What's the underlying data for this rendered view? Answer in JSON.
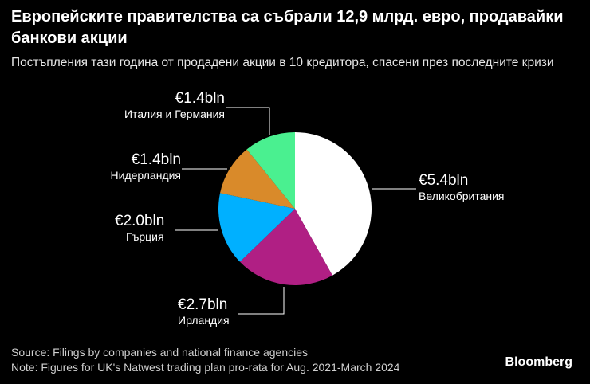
{
  "title": "Европейските правителства са събрали 12,9 млрд. евро, продавайки банкови акции",
  "subtitle": "Постъпления тази година от продадени акции в 10 кредитора, спасени през последните кризи",
  "chart_data": {
    "type": "pie",
    "title": "Европейските правителства са събрали 12,9 млрд. евро, продавайки банкови акции",
    "subtitle": "Постъпления тази година от продадени акции в 10 кредитора, спасени през последните кризи",
    "unit": "€ billion",
    "slices": [
      {
        "name": "Великобритания",
        "value": 5.4,
        "label": "€5.4bln",
        "color": "#ffffff"
      },
      {
        "name": "Ирландия",
        "value": 2.7,
        "label": "€2.7bln",
        "color": "#b01f84"
      },
      {
        "name": "Гърция",
        "value": 2.0,
        "label": "€2.0bln",
        "color": "#00b0ff"
      },
      {
        "name": "Нидерландия",
        "value": 1.4,
        "label": "€1.4bln",
        "color": "#d98a2a"
      },
      {
        "name": "Италия и Германия",
        "value": 1.4,
        "label": "€1.4bln",
        "color": "#4af090"
      }
    ]
  },
  "footer": {
    "source": "Source: Filings by companies and national finance agencies",
    "note": "Note: Figures for UK's Natwest trading plan pro-rata for Aug. 2021-March 2024",
    "logo": "Bloomberg"
  }
}
